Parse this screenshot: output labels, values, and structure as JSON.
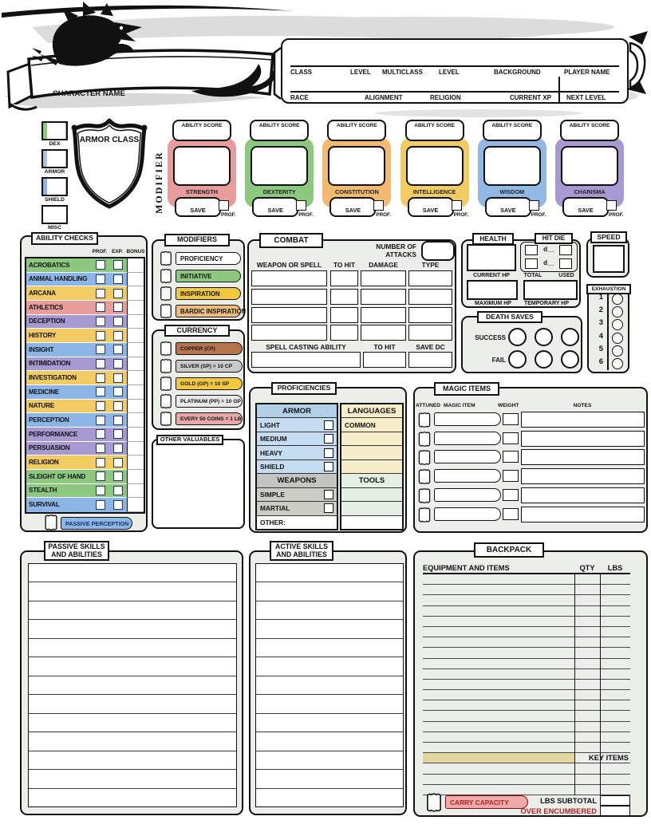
{
  "header": {
    "character_name_label": "CHARACTER NAME",
    "row1_labels": [
      "CLASS",
      "LEVEL",
      "MULTICLASS",
      "LEVEL",
      "BACKGROUND",
      "PLAYER NAME"
    ],
    "row2_labels": [
      "RACE",
      "ALIGNMENT",
      "RELIGION",
      "CURRENT XP",
      "NEXT LEVEL"
    ]
  },
  "armor_class": {
    "shield_label": "ARMOR CLASS",
    "modifier_label": "MODIFIER",
    "boxes": [
      {
        "label": "DEX",
        "side_color": "#8dc87f"
      },
      {
        "label": "ARMOR",
        "side_color": "#a9c2da"
      },
      {
        "label": "SHIELD",
        "side_color": "#8cb6e8"
      },
      {
        "label": "MISC",
        "side_color": "#ffffff"
      }
    ]
  },
  "abilities": {
    "score_label": "ABILITY SCORE",
    "save_label": "SAVE",
    "prof_label": "PROF.",
    "cards": [
      {
        "name": "STRENGTH",
        "color": "#e89c9c"
      },
      {
        "name": "DEXTERITY",
        "color": "#8dc87f"
      },
      {
        "name": "CONSTITUTION",
        "color": "#f2b971"
      },
      {
        "name": "INTELLIGENCE",
        "color": "#f2cb62"
      },
      {
        "name": "WISDOM",
        "color": "#92b8e6"
      },
      {
        "name": "CHARISMA",
        "color": "#a79ad2"
      }
    ]
  },
  "ability_checks": {
    "title": "ABILITY CHECKS",
    "col_prof": "PROF.",
    "col_exp": "EXP.",
    "col_bonus": "BONUS",
    "passive_perception_label": "PASSIVE PERCEPTION",
    "passive_perception_color": "#8cb6e8",
    "skills": [
      {
        "name": "ACROBATICS",
        "color": "#8dc87f"
      },
      {
        "name": "ANIMAL HANDLING",
        "color": "#8cb6e8"
      },
      {
        "name": "ARCANA",
        "color": "#f2cb62"
      },
      {
        "name": "ATHLETICS",
        "color": "#e89c9c"
      },
      {
        "name": "DECEPTION",
        "color": "#a79ad2"
      },
      {
        "name": "HISTORY",
        "color": "#f2cb62"
      },
      {
        "name": "INSIGHT",
        "color": "#8cb6e8"
      },
      {
        "name": "INTIMIDATION",
        "color": "#a79ad2"
      },
      {
        "name": "INVESTIGATION",
        "color": "#f2cb62"
      },
      {
        "name": "MEDICINE",
        "color": "#8cb6e8"
      },
      {
        "name": "NATURE",
        "color": "#f2cb62"
      },
      {
        "name": "PERCEPTION",
        "color": "#8cb6e8"
      },
      {
        "name": "PERFORMANCE",
        "color": "#a79ad2"
      },
      {
        "name": "PERSUASION",
        "color": "#a79ad2"
      },
      {
        "name": "RELIGION",
        "color": "#f2cb62"
      },
      {
        "name": "SLEIGHT OF HAND",
        "color": "#8dc87f"
      },
      {
        "name": "STEALTH",
        "color": "#8dc87f"
      },
      {
        "name": "SURVIVAL",
        "color": "#8cb6e8"
      }
    ]
  },
  "modifiers": {
    "title": "MODIFIERS",
    "items": [
      {
        "label": "PROFICIENCY",
        "color": "#ffffff"
      },
      {
        "label": "INITIATIVE",
        "color": "#8dc87f"
      },
      {
        "label": "INSPIRATION",
        "color": "#f2c83e"
      },
      {
        "label": "BARDIC INSPIRATION",
        "color": "#f0bd7a"
      }
    ]
  },
  "currency": {
    "title": "CURRENCY",
    "items": [
      {
        "label": "COPPER (CP)",
        "color": "#b5744c"
      },
      {
        "label": "SILVER (SP) = 10 CP",
        "color": "#c9c9c9"
      },
      {
        "label": "GOLD (GP) = 10 SP",
        "color": "#f2c83e"
      },
      {
        "label": "PLATINUM (PP) = 10 GP",
        "color": "#e8e8e8"
      },
      {
        "label": "EVERY 50 COINS = 1 LB",
        "color": "#e8a8a8"
      }
    ]
  },
  "other_valuables": {
    "title": "OTHER VALUABLES"
  },
  "combat": {
    "title": "COMBAT",
    "number_of_attacks_label": "NUMBER OF ATTACKS",
    "col_weapon": "WEAPON OR SPELL",
    "col_to_hit": "TO HIT",
    "col_damage": "DAMAGE",
    "col_type": "TYPE",
    "spell_ability_label": "SPELL CASTING ABILITY",
    "spell_to_hit_label": "TO HIT",
    "spell_save_dc_label": "SAVE DC"
  },
  "health": {
    "title": "HEALTH",
    "current_label": "CURRENT HP",
    "maximum_label": "MAXIMUM HP",
    "temporary_label": "TEMPORARY HP"
  },
  "hit_die": {
    "title": "HIT DIE",
    "die_label": "d__",
    "total_label": "TOTAL",
    "used_label": "USED"
  },
  "speed": {
    "title": "SPEED"
  },
  "exhaustion": {
    "title": "EXHAUSTION",
    "levels": [
      "1",
      "2",
      "3",
      "4",
      "5",
      "6"
    ]
  },
  "death_saves": {
    "title": "DEATH SAVES",
    "success_label": "SUCCESS",
    "fail_label": "FAIL"
  },
  "proficiencies": {
    "title": "PROFICIENCIES",
    "armor_header": "ARMOR",
    "armor_color": "#b3d0ea",
    "armor_row_color": "#c6dcf0",
    "armor_items": [
      "LIGHT",
      "MEDIUM",
      "HEAVY",
      "SHIELD"
    ],
    "weapons_header": "WEAPONS",
    "weapons_color": "#c4c4c0",
    "weapons_row_color": "#cdcdc8",
    "weapons_items": [
      "SIMPLE",
      "MARTIAL"
    ],
    "other_label": "OTHER:",
    "languages_header": "LANGUAGES",
    "languages_color": "#f8edca",
    "languages_items": [
      "COMMON",
      "",
      "",
      ""
    ],
    "tools_header": "TOOLS",
    "tools_color": "#e3f0e3",
    "tools_items": [
      "",
      "",
      ""
    ]
  },
  "magic_items": {
    "title": "MAGIC ITEMS",
    "col_attuned": "ATTUNED",
    "col_item": "MAGIC ITEM",
    "col_weight": "WEIGHT",
    "col_notes": "NOTES",
    "row_count": 6
  },
  "passive_skills": {
    "title_line1": "PASSIVE SKILLS",
    "title_line2": "AND ABILITIES"
  },
  "active_skills": {
    "title_line1": "ACTIVE SKILLS",
    "title_line2": "AND ABILITIES"
  },
  "backpack": {
    "title": "BACKPACK",
    "col_equipment": "EQUIPMENT AND ITEMS",
    "col_qty": "QTY",
    "col_lbs": "LBS",
    "key_items_label": "KEY ITEMS",
    "key_items_color": "#e3d79f",
    "subtotal_label": "LBS SUBTOTAL",
    "carry_capacity_label": "CARRY CAPACITY",
    "over_encumbered_label": "OVER ENCUMBERED",
    "alert_color": "#b32020",
    "rows_before_key": 17,
    "rows_after_key": 3
  }
}
